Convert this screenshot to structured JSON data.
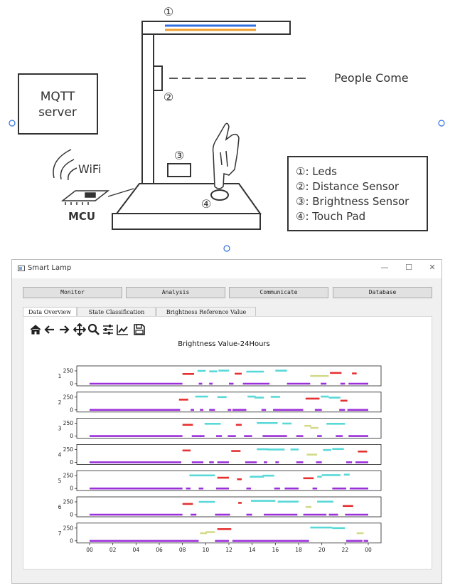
{
  "diagram": {
    "labels": {
      "mqtt_server_1": "MQTT",
      "mqtt_server_2": "server",
      "wifi": "WiFi",
      "mcu": "MCU",
      "people_come": "People Come",
      "marker_1": "①",
      "marker_2": "②",
      "marker_3": "③",
      "marker_4": "④"
    },
    "legend": [
      "①:  Leds",
      "②:  Distance Sensor",
      "③:  Brightness Sensor",
      "④:  Touch Pad"
    ],
    "colors": {
      "led_blue": "#2f6fe0",
      "led_orange": "#f0a030",
      "stroke": "#333333"
    }
  },
  "window": {
    "title": "Smart Lamp",
    "controls": {
      "minimize": "—",
      "maximize": "☐",
      "close": "✕"
    },
    "buttons": [
      "Monitor",
      "Analysis",
      "Communicate",
      "Database"
    ],
    "tabs": [
      "Data Overview",
      "State Classification",
      "Brightness Reference Value"
    ],
    "active_tab": 0,
    "toolbar_icons": [
      "home-icon",
      "back-arrow-icon",
      "forward-arrow-icon",
      "pan-icon",
      "zoom-icon",
      "configure-subplots-icon",
      "edit-axis-icon",
      "save-icon"
    ]
  },
  "chart_data": {
    "type": "scatter",
    "title": "Brightness Value-24Hours",
    "xlabel": "",
    "ylabel": "",
    "xlim": [
      0,
      24
    ],
    "ylim": [
      0,
      250
    ],
    "xticks": [
      "00",
      "02",
      "04",
      "06",
      "08",
      "10",
      "12",
      "14",
      "16",
      "18",
      "20",
      "22",
      "00"
    ],
    "yticks": [
      "0",
      "250"
    ],
    "colors": {
      "off": "#9b30d9",
      "mid": "#d4da8a",
      "bright": "#e53030",
      "high": "#5ad8d8"
    },
    "series": [
      {
        "name": "1",
        "segments": [
          [
            0.0,
            8.0,
            0,
            "off"
          ],
          [
            8.0,
            9.0,
            190,
            "bright"
          ],
          [
            9.4,
            9.7,
            0,
            "off"
          ],
          [
            9.3,
            10.0,
            250,
            "high"
          ],
          [
            10.3,
            10.6,
            0,
            "off"
          ],
          [
            10.3,
            11.0,
            240,
            "high"
          ],
          [
            11.1,
            12.0,
            255,
            "high"
          ],
          [
            12.0,
            12.4,
            0,
            "off"
          ],
          [
            12.5,
            13.1,
            195,
            "bright"
          ],
          [
            13.2,
            15.5,
            0,
            "off"
          ],
          [
            13.5,
            15.0,
            235,
            "high"
          ],
          [
            16.0,
            17.0,
            255,
            "high"
          ],
          [
            17.0,
            19.0,
            0,
            "off"
          ],
          [
            19.0,
            20.6,
            150,
            "mid"
          ],
          [
            19.9,
            20.4,
            0,
            "off"
          ],
          [
            20.7,
            21.7,
            210,
            "bright"
          ],
          [
            21.6,
            22.0,
            0,
            "off"
          ],
          [
            22.3,
            23.5,
            0,
            "off"
          ],
          [
            22.6,
            23.0,
            200,
            "bright"
          ],
          [
            23.5,
            24.0,
            0,
            "off"
          ]
        ]
      },
      {
        "name": "2",
        "segments": [
          [
            0.0,
            7.8,
            0,
            "off"
          ],
          [
            7.7,
            8.5,
            200,
            "bright"
          ],
          [
            8.7,
            9.0,
            0,
            "off"
          ],
          [
            9.1,
            10.2,
            260,
            "high"
          ],
          [
            9.5,
            9.8,
            0,
            "off"
          ],
          [
            10.3,
            10.8,
            0,
            "off"
          ],
          [
            11.0,
            11.8,
            250,
            "high"
          ],
          [
            11.9,
            12.2,
            0,
            "off"
          ],
          [
            12.3,
            13.5,
            0,
            "off"
          ],
          [
            13.6,
            14.3,
            260,
            "high"
          ],
          [
            14.2,
            15.0,
            240,
            "high"
          ],
          [
            14.8,
            15.2,
            0,
            "off"
          ],
          [
            15.6,
            16.4,
            255,
            "high"
          ],
          [
            15.8,
            18.4,
            0,
            "off"
          ],
          [
            18.6,
            19.8,
            220,
            "bright"
          ],
          [
            19.4,
            20.0,
            0,
            "off"
          ],
          [
            19.9,
            20.6,
            260,
            "high"
          ],
          [
            20.6,
            21.6,
            240,
            "high"
          ],
          [
            21.5,
            22.0,
            0,
            "off"
          ],
          [
            21.6,
            22.2,
            180,
            "bright"
          ],
          [
            22.2,
            24.0,
            0,
            "off"
          ]
        ]
      },
      {
        "name": "3",
        "segments": [
          [
            0.0,
            8.0,
            0,
            "off"
          ],
          [
            8.0,
            8.9,
            220,
            "bright"
          ],
          [
            8.8,
            9.6,
            0,
            "off"
          ],
          [
            9.9,
            11.3,
            240,
            "high"
          ],
          [
            9.5,
            9.9,
            0,
            "off"
          ],
          [
            10.9,
            11.4,
            0,
            "off"
          ],
          [
            11.9,
            12.6,
            0,
            "off"
          ],
          [
            12.6,
            13.1,
            220,
            "bright"
          ],
          [
            13.3,
            14.0,
            0,
            "off"
          ],
          [
            14.4,
            16.2,
            255,
            "high"
          ],
          [
            14.9,
            17.0,
            0,
            "off"
          ],
          [
            16.6,
            17.4,
            245,
            "high"
          ],
          [
            17.8,
            18.4,
            0,
            "off"
          ],
          [
            18.5,
            19.1,
            200,
            "mid"
          ],
          [
            19.0,
            19.7,
            160,
            "mid"
          ],
          [
            19.6,
            20.0,
            0,
            "off"
          ],
          [
            20.4,
            22.0,
            240,
            "high"
          ],
          [
            21.2,
            21.8,
            0,
            "off"
          ],
          [
            22.3,
            24.0,
            0,
            "off"
          ]
        ]
      },
      {
        "name": "4",
        "segments": [
          [
            0.0,
            7.9,
            0,
            "off"
          ],
          [
            8.0,
            8.7,
            230,
            "bright"
          ],
          [
            8.8,
            9.8,
            0,
            "off"
          ],
          [
            10.3,
            10.7,
            0,
            "off"
          ],
          [
            11.0,
            12.0,
            0,
            "off"
          ],
          [
            12.2,
            13.0,
            220,
            "bright"
          ],
          [
            13.4,
            14.4,
            0,
            "off"
          ],
          [
            14.4,
            15.4,
            255,
            "high"
          ],
          [
            15.0,
            15.3,
            0,
            "off"
          ],
          [
            15.3,
            16.8,
            250,
            "high"
          ],
          [
            16.0,
            16.3,
            0,
            "off"
          ],
          [
            17.3,
            18.0,
            250,
            "high"
          ],
          [
            17.8,
            18.4,
            0,
            "off"
          ],
          [
            18.7,
            19.6,
            150,
            "mid"
          ],
          [
            19.5,
            20.0,
            0,
            "off"
          ],
          [
            20.1,
            20.8,
            240,
            "high"
          ],
          [
            20.9,
            21.9,
            260,
            "high"
          ],
          [
            22.1,
            22.6,
            0,
            "off"
          ],
          [
            22.9,
            24.0,
            0,
            "off"
          ],
          [
            23.1,
            23.9,
            210,
            "bright"
          ]
        ]
      },
      {
        "name": "5",
        "segments": [
          [
            0.0,
            8.0,
            0,
            "off"
          ],
          [
            8.6,
            10.8,
            255,
            "high"
          ],
          [
            8.3,
            8.7,
            0,
            "off"
          ],
          [
            9.4,
            9.8,
            0,
            "off"
          ],
          [
            10.9,
            12.0,
            0,
            "off"
          ],
          [
            11.0,
            12.0,
            210,
            "bright"
          ],
          [
            12.7,
            13.1,
            180,
            "bright"
          ],
          [
            13.5,
            13.9,
            0,
            "off"
          ],
          [
            13.8,
            15.0,
            230,
            "high"
          ],
          [
            14.9,
            15.9,
            250,
            "high"
          ],
          [
            15.9,
            16.4,
            0,
            "off"
          ],
          [
            16.8,
            18.0,
            0,
            "off"
          ],
          [
            18.4,
            19.3,
            200,
            "bright"
          ],
          [
            19.2,
            19.6,
            0,
            "off"
          ],
          [
            19.6,
            20.0,
            230,
            "high"
          ],
          [
            20.0,
            21.6,
            260,
            "high"
          ],
          [
            20.9,
            22.1,
            0,
            "off"
          ],
          [
            21.9,
            22.4,
            270,
            "high"
          ],
          [
            22.4,
            24.0,
            0,
            "off"
          ]
        ]
      },
      {
        "name": "6",
        "segments": [
          [
            0.0,
            8.0,
            0,
            "off"
          ],
          [
            8.0,
            8.9,
            210,
            "bright"
          ],
          [
            8.7,
            9.2,
            0,
            "off"
          ],
          [
            9.4,
            10.8,
            250,
            "high"
          ],
          [
            10.8,
            11.3,
            0,
            "off"
          ],
          [
            11.2,
            12.1,
            0,
            "off"
          ],
          [
            12.8,
            13.1,
            230,
            "bright"
          ],
          [
            13.5,
            14.0,
            0,
            "off"
          ],
          [
            13.9,
            16.0,
            270,
            "high"
          ],
          [
            15.0,
            17.9,
            0,
            "off"
          ],
          [
            16.2,
            18.0,
            255,
            "high"
          ],
          [
            18.6,
            19.1,
            150,
            "mid"
          ],
          [
            18.4,
            20.4,
            0,
            "off"
          ],
          [
            19.6,
            21.0,
            255,
            "high"
          ],
          [
            20.6,
            21.4,
            0,
            "off"
          ],
          [
            21.8,
            22.7,
            170,
            "bright"
          ],
          [
            22.0,
            24.0,
            0,
            "off"
          ]
        ]
      },
      {
        "name": "7",
        "segments": [
          [
            0.0,
            9.4,
            0,
            "off"
          ],
          [
            9.5,
            10.1,
            150,
            "mid"
          ],
          [
            10.0,
            10.8,
            170,
            "mid"
          ],
          [
            10.8,
            12.0,
            0,
            "off"
          ],
          [
            11.0,
            12.2,
            230,
            "bright"
          ],
          [
            12.3,
            18.9,
            0,
            "off"
          ],
          [
            19.0,
            20.9,
            260,
            "high"
          ],
          [
            20.9,
            22.0,
            250,
            "high"
          ],
          [
            22.1,
            23.5,
            0,
            "off"
          ],
          [
            23.0,
            23.6,
            150,
            "mid"
          ],
          [
            23.6,
            24.0,
            0,
            "off"
          ]
        ]
      }
    ]
  }
}
